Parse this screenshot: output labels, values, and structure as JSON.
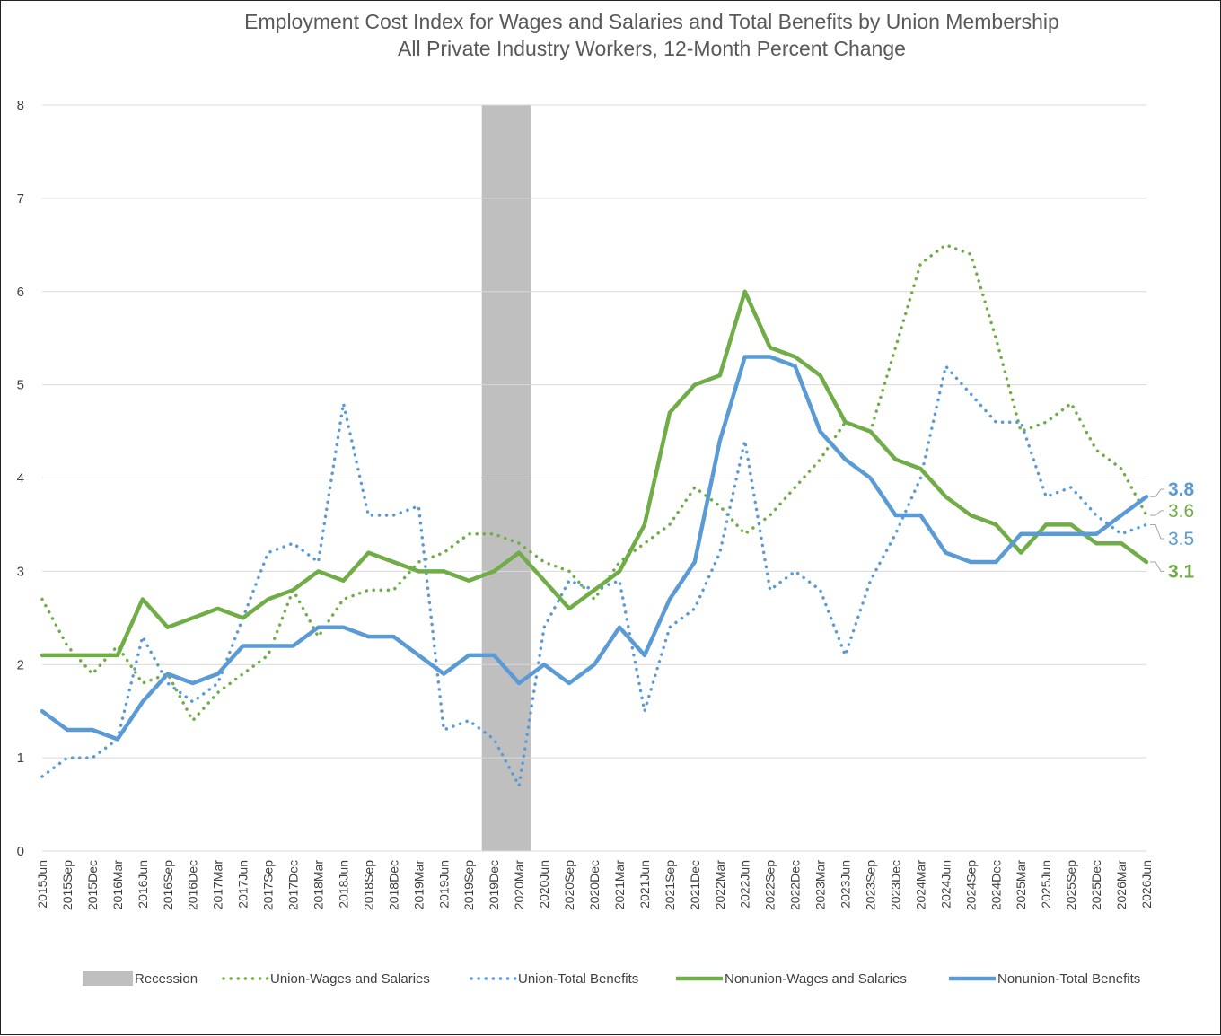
{
  "chart_data": {
    "type": "line",
    "title": "Employment Cost Index for Wages and Salaries and Total Benefits by Union Membership",
    "subtitle": "All Private Industry Workers, 12-Month Percent Change",
    "ylim": [
      0,
      8
    ],
    "yticks": [
      "0",
      "1",
      "2",
      "3",
      "4",
      "5",
      "6",
      "7",
      "8"
    ],
    "grid": true,
    "legend_position": "bottom",
    "categories": [
      "2015Jun",
      "2015Sep",
      "2015Dec",
      "2016Mar",
      "2016Jun",
      "2016Sep",
      "2016Dec",
      "2017Mar",
      "2017Jun",
      "2017Sep",
      "2017Dec",
      "2018Mar",
      "2018Jun",
      "2018Sep",
      "2018Dec",
      "2019Mar",
      "2019Jun",
      "2019Sep",
      "2019Dec",
      "2020Mar",
      "2020Jun",
      "2020Sep",
      "2020Dec",
      "2021Mar",
      "2021Jun",
      "2021Sep",
      "2021Dec",
      "2022Mar",
      "2022Jun",
      "2022Sep",
      "2022Dec",
      "2023Mar",
      "2023Jun",
      "2023Sep",
      "2023Dec",
      "2024Mar",
      "2024Jun",
      "2024Sep",
      "2024Dec",
      "2025Mar",
      "2025Jun",
      "2025Sep",
      "2025Dec",
      "2026Mar",
      "2026Jun"
    ],
    "recession": {
      "label": "Recession",
      "start": "2019Dec",
      "end": "2020Mar",
      "color": "#bfbfbf"
    },
    "series": [
      {
        "name": "Union-Wages and Salaries",
        "style": "dotted",
        "color": "#70ad47",
        "values": [
          2.7,
          2.2,
          1.9,
          2.2,
          1.8,
          1.9,
          1.4,
          1.7,
          1.9,
          2.1,
          2.8,
          2.3,
          2.7,
          2.8,
          2.8,
          3.1,
          3.2,
          3.4,
          3.4,
          3.3,
          3.1,
          3.0,
          2.7,
          3.1,
          3.3,
          3.5,
          3.9,
          3.7,
          3.4,
          3.6,
          3.9,
          4.2,
          4.6,
          4.5,
          5.4,
          6.3,
          6.5,
          6.4,
          5.5,
          4.5,
          4.6,
          4.8,
          4.3,
          4.1,
          3.6
        ]
      },
      {
        "name": "Union-Total Benefits",
        "style": "dotted",
        "color": "#5b9bd5",
        "values": [
          0.8,
          1.0,
          1.0,
          1.2,
          2.3,
          1.8,
          1.6,
          1.8,
          2.5,
          3.2,
          3.3,
          3.1,
          4.8,
          3.6,
          3.6,
          3.7,
          1.3,
          1.4,
          1.2,
          0.7,
          2.4,
          2.9,
          2.8,
          2.9,
          1.5,
          2.4,
          2.6,
          3.2,
          4.4,
          2.8,
          3.0,
          2.8,
          2.1,
          2.9,
          3.4,
          4.0,
          5.2,
          4.9,
          4.6,
          4.6,
          3.8,
          3.9,
          3.6,
          3.4,
          3.5
        ]
      },
      {
        "name": "Nonunion-Wages and Salaries",
        "style": "solid",
        "color": "#70ad47",
        "values": [
          2.1,
          2.1,
          2.1,
          2.1,
          2.7,
          2.4,
          2.5,
          2.6,
          2.5,
          2.7,
          2.8,
          3.0,
          2.9,
          3.2,
          3.1,
          3.0,
          3.0,
          2.9,
          3.0,
          3.2,
          2.9,
          2.6,
          2.8,
          3.0,
          3.5,
          4.7,
          5.0,
          5.1,
          6.0,
          5.4,
          5.3,
          5.1,
          4.6,
          4.5,
          4.2,
          4.1,
          3.8,
          3.6,
          3.5,
          3.2,
          3.5,
          3.5,
          3.3,
          3.3,
          3.1
        ]
      },
      {
        "name": "Nonunion-Total Benefits",
        "style": "solid",
        "color": "#5b9bd5",
        "values": [
          1.5,
          1.3,
          1.3,
          1.2,
          1.6,
          1.9,
          1.8,
          1.9,
          2.2,
          2.2,
          2.2,
          2.4,
          2.4,
          2.3,
          2.3,
          2.1,
          1.9,
          2.1,
          2.1,
          1.8,
          2.0,
          1.8,
          2.0,
          2.4,
          2.1,
          2.7,
          3.1,
          4.4,
          5.3,
          5.3,
          5.2,
          4.5,
          4.2,
          4.0,
          3.6,
          3.6,
          3.2,
          3.1,
          3.1,
          3.4,
          3.4,
          3.4,
          3.4,
          3.6,
          3.8
        ]
      }
    ],
    "end_labels": [
      {
        "text": "3.8",
        "value": 3.8,
        "label_value": 3.88,
        "series": "Nonunion-Total Benefits",
        "color": "#5b9bd5",
        "bold": true
      },
      {
        "text": "3.6",
        "value": 3.6,
        "label_value": 3.65,
        "series": "Union-Wages and Salaries",
        "color": "#70ad47",
        "bold": false
      },
      {
        "text": "3.5",
        "value": 3.5,
        "label_value": 3.35,
        "series": "Union-Total Benefits",
        "color": "#5b9bd5",
        "bold": false
      },
      {
        "text": "3.1",
        "value": 3.1,
        "label_value": 3.0,
        "series": "Nonunion-Wages and Salaries",
        "color": "#70ad47",
        "bold": true
      }
    ]
  }
}
